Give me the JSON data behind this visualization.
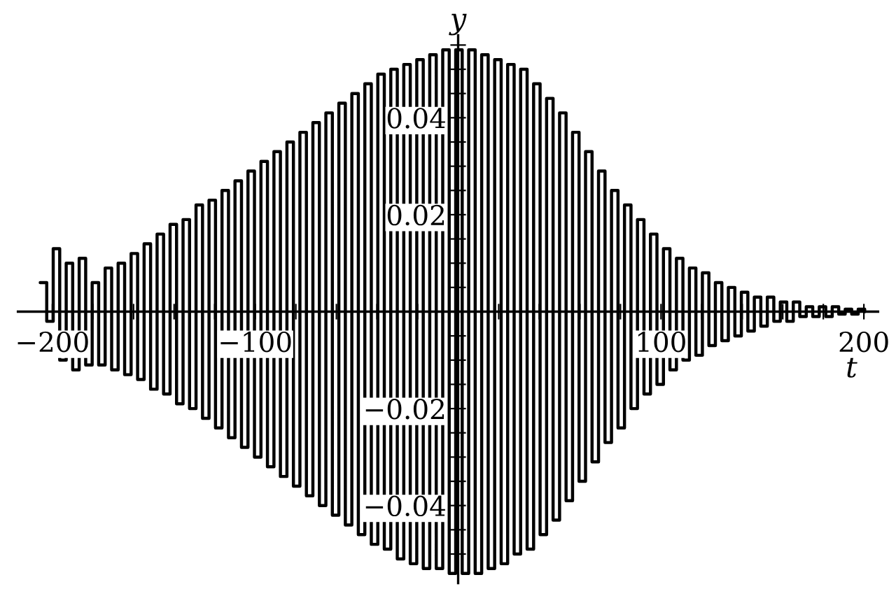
{
  "chart_data": {
    "type": "step",
    "xlabel": "t",
    "ylabel": "y",
    "grid": false,
    "line_style": "solid",
    "marker": "none",
    "xlim": [
      -217,
      207
    ],
    "ylim": [
      -0.056,
      0.057
    ],
    "xticks": [
      {
        "value": -200,
        "label": "−200"
      },
      {
        "value": -180,
        "label": null
      },
      {
        "value": -160,
        "label": null
      },
      {
        "value": -140,
        "label": null
      },
      {
        "value": -120,
        "label": null
      },
      {
        "value": -100,
        "label": "−100"
      },
      {
        "value": -80,
        "label": null
      },
      {
        "value": -60,
        "label": null
      },
      {
        "value": -40,
        "label": null
      },
      {
        "value": -20,
        "label": null
      },
      {
        "value": 20,
        "label": null
      },
      {
        "value": 40,
        "label": null
      },
      {
        "value": 60,
        "label": null
      },
      {
        "value": 80,
        "label": null
      },
      {
        "value": 100,
        "label": "100"
      },
      {
        "value": 120,
        "label": null
      },
      {
        "value": 140,
        "label": null
      },
      {
        "value": 160,
        "label": null
      },
      {
        "value": 180,
        "label": null
      },
      {
        "value": 200,
        "label": "200"
      }
    ],
    "yticks": [
      {
        "value": -0.05,
        "label": null
      },
      {
        "value": -0.045,
        "label": null
      },
      {
        "value": -0.04,
        "label": "−0.04"
      },
      {
        "value": -0.035,
        "label": null
      },
      {
        "value": -0.03,
        "label": null
      },
      {
        "value": -0.025,
        "label": null
      },
      {
        "value": -0.02,
        "label": "−0.02"
      },
      {
        "value": -0.015,
        "label": null
      },
      {
        "value": -0.01,
        "label": null
      },
      {
        "value": -0.005,
        "label": null
      },
      {
        "value": 0.005,
        "label": null
      },
      {
        "value": 0.01,
        "label": null
      },
      {
        "value": 0.015,
        "label": null
      },
      {
        "value": 0.02,
        "label": "0.02"
      },
      {
        "value": 0.025,
        "label": null
      },
      {
        "value": 0.03,
        "label": null
      },
      {
        "value": 0.035,
        "label": null
      },
      {
        "value": 0.04,
        "label": "0.04"
      },
      {
        "value": 0.045,
        "label": null
      },
      {
        "value": 0.05,
        "label": null
      },
      {
        "value": 0.055,
        "label": null
      }
    ],
    "series": [
      {
        "color": "#000000",
        "x": [
          -206.0,
          -202.8,
          -199.6,
          -196.4,
          -193.2,
          -190.0,
          -186.8,
          -183.6,
          -180.4,
          -177.2,
          -174.0,
          -170.8,
          -167.6,
          -164.4,
          -161.2,
          -158.0,
          -154.8,
          -151.6,
          -148.4,
          -145.2,
          -142.0,
          -138.8,
          -135.6,
          -132.4,
          -129.2,
          -126.0,
          -122.8,
          -119.6,
          -116.4,
          -113.2,
          -110.0,
          -106.8,
          -103.6,
          -100.4,
          -97.2,
          -94.0,
          -90.8,
          -87.6,
          -84.4,
          -81.2,
          -78.0,
          -74.8,
          -71.6,
          -68.4,
          -65.2,
          -62.0,
          -58.8,
          -55.6,
          -52.4,
          -49.2,
          -46.0,
          -42.8,
          -39.6,
          -36.4,
          -33.2,
          -30.0,
          -26.8,
          -23.6,
          -20.4,
          -17.2,
          -14.0,
          -10.8,
          -7.6,
          -4.4,
          -1.2,
          2.0,
          5.2,
          8.4,
          11.6,
          14.8,
          18.0,
          21.2,
          24.4,
          27.6,
          30.8,
          34.0,
          37.2,
          40.4,
          43.6,
          46.8,
          50.0,
          53.2,
          56.4,
          59.6,
          62.8,
          66.0,
          69.2,
          72.4,
          75.6,
          78.8,
          82.0,
          85.2,
          88.4,
          91.6,
          94.8,
          98.0,
          101.2,
          104.4,
          107.6,
          110.8,
          114.0,
          117.2,
          120.4,
          123.6,
          126.8,
          130.0,
          133.2,
          136.4,
          139.6,
          142.8,
          146.0,
          149.2,
          152.4,
          155.6,
          158.8,
          162.0,
          165.2,
          168.4,
          171.6,
          174.8,
          178.0,
          181.2,
          184.4,
          187.6,
          190.8,
          194.0,
          197.2,
          200.4
        ],
        "values": [
          0.006,
          -0.002,
          0.013,
          -0.01,
          0.01,
          -0.012,
          0.011,
          -0.011,
          0.006,
          -0.011,
          0.009,
          -0.012,
          0.01,
          -0.013,
          0.012,
          -0.014,
          0.014,
          -0.016,
          0.016,
          -0.017,
          0.018,
          -0.019,
          0.019,
          -0.02,
          0.022,
          -0.022,
          0.023,
          -0.024,
          0.025,
          -0.026,
          0.027,
          -0.028,
          0.029,
          -0.03,
          0.031,
          -0.032,
          0.033,
          -0.034,
          0.035,
          -0.036,
          0.037,
          -0.038,
          0.039,
          -0.04,
          0.041,
          -0.042,
          0.043,
          -0.044,
          0.045,
          -0.046,
          0.047,
          -0.048,
          0.049,
          -0.049,
          0.05,
          -0.051,
          0.051,
          -0.052,
          0.052,
          -0.053,
          0.053,
          -0.053,
          0.054,
          -0.054,
          0.054,
          -0.054,
          0.054,
          -0.054,
          0.053,
          -0.053,
          0.052,
          -0.052,
          0.051,
          -0.05,
          0.05,
          -0.049,
          0.047,
          -0.046,
          0.044,
          -0.043,
          0.041,
          -0.039,
          0.037,
          -0.035,
          0.033,
          -0.031,
          0.029,
          -0.027,
          0.025,
          -0.024,
          0.022,
          -0.02,
          0.019,
          -0.017,
          0.016,
          -0.015,
          0.013,
          -0.012,
          0.011,
          -0.01,
          0.009,
          -0.009,
          0.008,
          -0.007,
          0.006,
          -0.006,
          0.005,
          -0.005,
          0.004,
          -0.004,
          0.003,
          -0.003,
          0.003,
          -0.002,
          0.002,
          -0.002,
          0.002,
          -0.001,
          0.001,
          -0.001,
          0.001,
          -0.001,
          0.001,
          -0.0005,
          0.0005,
          -0.0005,
          0.0005,
          0
        ]
      }
    ]
  }
}
